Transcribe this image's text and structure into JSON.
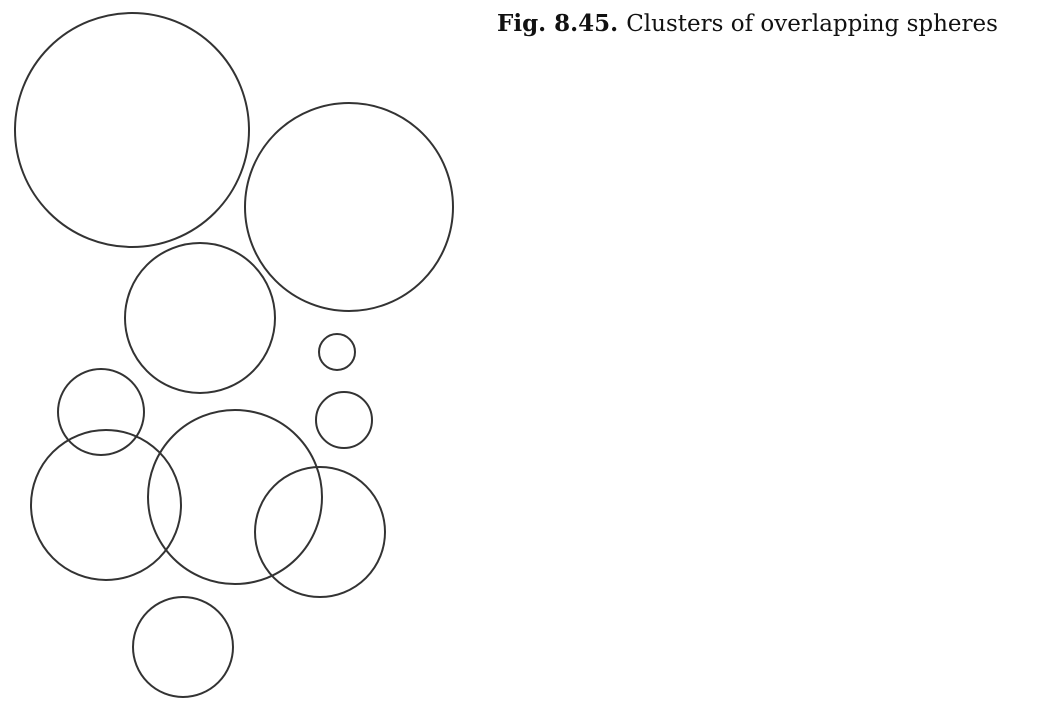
{
  "caption": {
    "label": "Fig. 8.45.",
    "text": "Clusters of overlapping spheres"
  },
  "style": {
    "stroke_color": "#333333",
    "background": "#ffffff"
  },
  "spheres": [
    {
      "name": "sphere-large-top-left"
    },
    {
      "name": "sphere-large-top-right"
    },
    {
      "name": "sphere-medium-center"
    },
    {
      "name": "sphere-tiny-right"
    },
    {
      "name": "sphere-small-left"
    },
    {
      "name": "sphere-small-right"
    },
    {
      "name": "sphere-medium-left"
    },
    {
      "name": "sphere-large-center"
    },
    {
      "name": "sphere-medium-right"
    },
    {
      "name": "sphere-medium-bottom"
    }
  ]
}
